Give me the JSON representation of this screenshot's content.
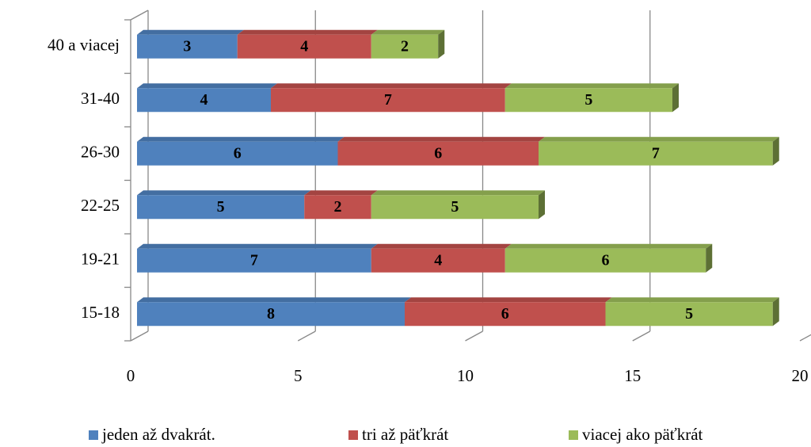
{
  "chart_data": {
    "type": "bar",
    "orientation": "horizontal",
    "stacked": true,
    "three_d": true,
    "categories": [
      "15-18",
      "19-21",
      "22-25",
      "26-30",
      "31-40",
      "40 a viacej"
    ],
    "series": [
      {
        "name": "jeden až dvakrát.",
        "color": "#4f81bd",
        "values": [
          8,
          7,
          5,
          6,
          4,
          3
        ]
      },
      {
        "name": "tri až päťkrát",
        "color": "#c0504d",
        "values": [
          6,
          4,
          2,
          6,
          7,
          4
        ]
      },
      {
        "name": "viacej ako päťkrát",
        "color": "#9bbb59",
        "values": [
          5,
          6,
          5,
          7,
          5,
          2
        ]
      }
    ],
    "xlim": [
      0,
      20
    ],
    "xticks": [
      0,
      5,
      10,
      15,
      20
    ],
    "grid": true,
    "legend": "bottom",
    "data_labels": true
  }
}
